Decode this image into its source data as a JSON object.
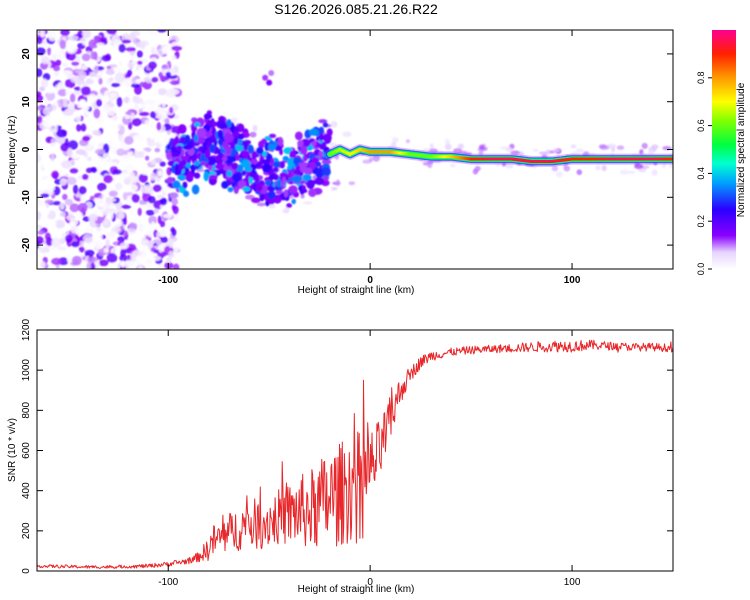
{
  "title": "S126.2026.085.21.26.R22",
  "chart_data": [
    {
      "type": "heatmap",
      "xlabel": "Height of straight line (km)",
      "ylabel": "Frequency (Hz)",
      "xlim": [
        -165,
        150
      ],
      "ylim": [
        -25,
        25
      ],
      "x_ticks": [
        -100,
        0,
        100
      ],
      "x_tick_labels": [
        "-100",
        "0",
        "100"
      ],
      "y_ticks": [
        -20,
        -10,
        0,
        10,
        20
      ],
      "y_tick_labels": [
        "-20",
        "-10",
        "0",
        "10",
        "20"
      ],
      "colorbar": {
        "label": "Normalized spectral amplitude",
        "range": [
          0,
          1
        ],
        "ticks": [
          0,
          0.2,
          0.4,
          0.6,
          0.8
        ],
        "tick_labels": [
          "0.0",
          "0.2",
          "0.4",
          "0.6",
          "0.8"
        ],
        "colormap": "rainbow (white-violet-blue-cyan-green-yellow-red-magenta)"
      },
      "ridge": {
        "x": [
          -100,
          -90,
          -80,
          -70,
          -60,
          -50,
          -40,
          -30,
          -25,
          -20,
          -15,
          -10,
          -5,
          0,
          10,
          20,
          30,
          40,
          50,
          60,
          70,
          80,
          90,
          100,
          110,
          120,
          130,
          140,
          150
        ],
        "frequency": [
          -4,
          -2,
          1,
          -1,
          -3,
          -4,
          -6,
          -3,
          -1,
          -1,
          0,
          -1,
          0,
          -0.5,
          -0.5,
          -1,
          -1.5,
          -1.5,
          -2,
          -2,
          -2,
          -2.5,
          -2.5,
          -2,
          -2,
          -2,
          -2,
          -2,
          -2
        ],
        "amplitude": [
          0.2,
          0.3,
          0.35,
          0.3,
          0.35,
          0.35,
          0.35,
          0.4,
          0.5,
          0.6,
          0.65,
          0.7,
          0.75,
          0.8,
          0.8,
          0.6,
          0.6,
          0.75,
          0.9,
          0.95,
          0.95,
          0.95,
          0.95,
          0.9,
          0.9,
          0.95,
          0.95,
          0.95,
          0.9
        ]
      },
      "noise_region": {
        "x_range": [
          -165,
          -95
        ],
        "frequency_range": [
          -25,
          25
        ],
        "amplitude": "low (0.0-0.2)"
      }
    },
    {
      "type": "line",
      "xlabel": "Height of straight line (km)",
      "ylabel": "SNR (10 * v/v)",
      "xlim": [
        -165,
        150
      ],
      "ylim": [
        0,
        1200
      ],
      "x_ticks": [
        -100,
        0,
        100
      ],
      "x_tick_labels": [
        "-100",
        "0",
        "100"
      ],
      "y_ticks": [
        0,
        200,
        400,
        600,
        800,
        1000,
        1200
      ],
      "y_tick_labels": [
        "0",
        "200",
        "400",
        "600",
        "800",
        "1000",
        "1200"
      ],
      "series": [
        {
          "name": "SNR",
          "color": "#e8272a",
          "x": [
            -165,
            -150,
            -140,
            -130,
            -120,
            -110,
            -100,
            -90,
            -85,
            -80,
            -78,
            -75,
            -70,
            -65,
            -60,
            -55,
            -50,
            -45,
            -40,
            -35,
            -30,
            -25,
            -20,
            -15,
            -10,
            -5,
            0,
            5,
            10,
            15,
            20,
            25,
            30,
            40,
            50,
            60,
            70,
            80,
            90,
            100,
            110,
            120,
            130,
            140,
            150
          ],
          "values": [
            25,
            22,
            20,
            20,
            22,
            25,
            35,
            50,
            70,
            110,
            150,
            160,
            190,
            210,
            240,
            230,
            250,
            270,
            280,
            300,
            300,
            330,
            360,
            380,
            420,
            450,
            500,
            600,
            750,
            900,
            980,
            1040,
            1070,
            1090,
            1100,
            1105,
            1110,
            1115,
            1120,
            1120,
            1125,
            1120,
            1115,
            1115,
            1110
          ],
          "noise_amplitude": [
            8,
            8,
            8,
            8,
            8,
            10,
            12,
            15,
            25,
            60,
            80,
            90,
            100,
            110,
            120,
            130,
            130,
            140,
            160,
            180,
            200,
            230,
            250,
            260,
            280,
            250,
            200,
            160,
            120,
            70,
            40,
            30,
            25,
            20,
            20,
            20,
            22,
            25,
            30,
            30,
            25,
            20,
            20,
            20,
            20
          ]
        }
      ]
    }
  ]
}
